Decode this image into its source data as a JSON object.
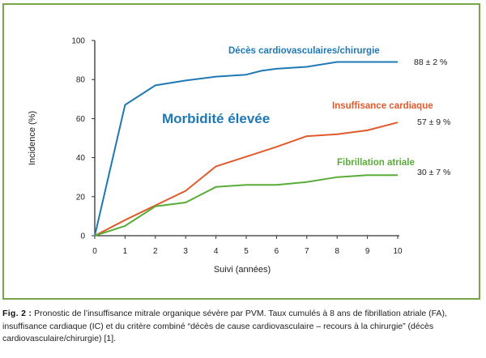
{
  "chart_data": {
    "type": "line",
    "xlabel": "Suivi (années)",
    "ylabel": "Incidence (%)",
    "xlim": [
      0,
      10
    ],
    "ylim": [
      0,
      100
    ],
    "x_ticks": [
      0,
      1,
      2,
      3,
      4,
      5,
      6,
      7,
      8,
      9,
      10
    ],
    "y_ticks": [
      0,
      20,
      40,
      60,
      80,
      100
    ],
    "grid": false,
    "annotation": "Morbidité élevée",
    "series": [
      {
        "name": "Décès cardiovasculaires/chirurgie",
        "color": "#1f78b4",
        "end_label": "88 ± 2 %",
        "points": [
          [
            0,
            0
          ],
          [
            1,
            67
          ],
          [
            2,
            77
          ],
          [
            3,
            79.5
          ],
          [
            4,
            81.5
          ],
          [
            5,
            82.5
          ],
          [
            5.5,
            84.5
          ],
          [
            6,
            85.5
          ],
          [
            7,
            86.5
          ],
          [
            8,
            89
          ],
          [
            9,
            89
          ],
          [
            10,
            89
          ]
        ]
      },
      {
        "name": "Insuffisance cardiaque",
        "color": "#e05a2b",
        "end_label": "57 ± 9 %",
        "points": [
          [
            0,
            0
          ],
          [
            1,
            8
          ],
          [
            2,
            15.5
          ],
          [
            3,
            23
          ],
          [
            4,
            35.5
          ],
          [
            5,
            40.5
          ],
          [
            6,
            45.5
          ],
          [
            7,
            51
          ],
          [
            8,
            52
          ],
          [
            9,
            54
          ],
          [
            10,
            58
          ]
        ]
      },
      {
        "name": "Fibrillation atriale",
        "color": "#59ac3a",
        "end_label": "30 ± 7 %",
        "points": [
          [
            0,
            0
          ],
          [
            1,
            5
          ],
          [
            2,
            15
          ],
          [
            3,
            17
          ],
          [
            4,
            25
          ],
          [
            5,
            26
          ],
          [
            6,
            26
          ],
          [
            7,
            27.5
          ],
          [
            8,
            30
          ],
          [
            9,
            31
          ],
          [
            10,
            31
          ]
        ]
      }
    ]
  },
  "caption": {
    "label": "Fig. 2 :",
    "text": "Pronostic de l’insuffisance mitrale organique sévère par PVM. Taux cumulés à 8 ans de fibrillation atriale (FA), insuffisance cardiaque (IC) et du critère combiné “décès de cause cardiovasculaire – recours à la chirurgie” (décès cardiovasculaire/chirurgie) [1]."
  },
  "colors": {
    "frame": "#7aa44a",
    "axis": "#333333",
    "annotation": "#1f78b4"
  }
}
